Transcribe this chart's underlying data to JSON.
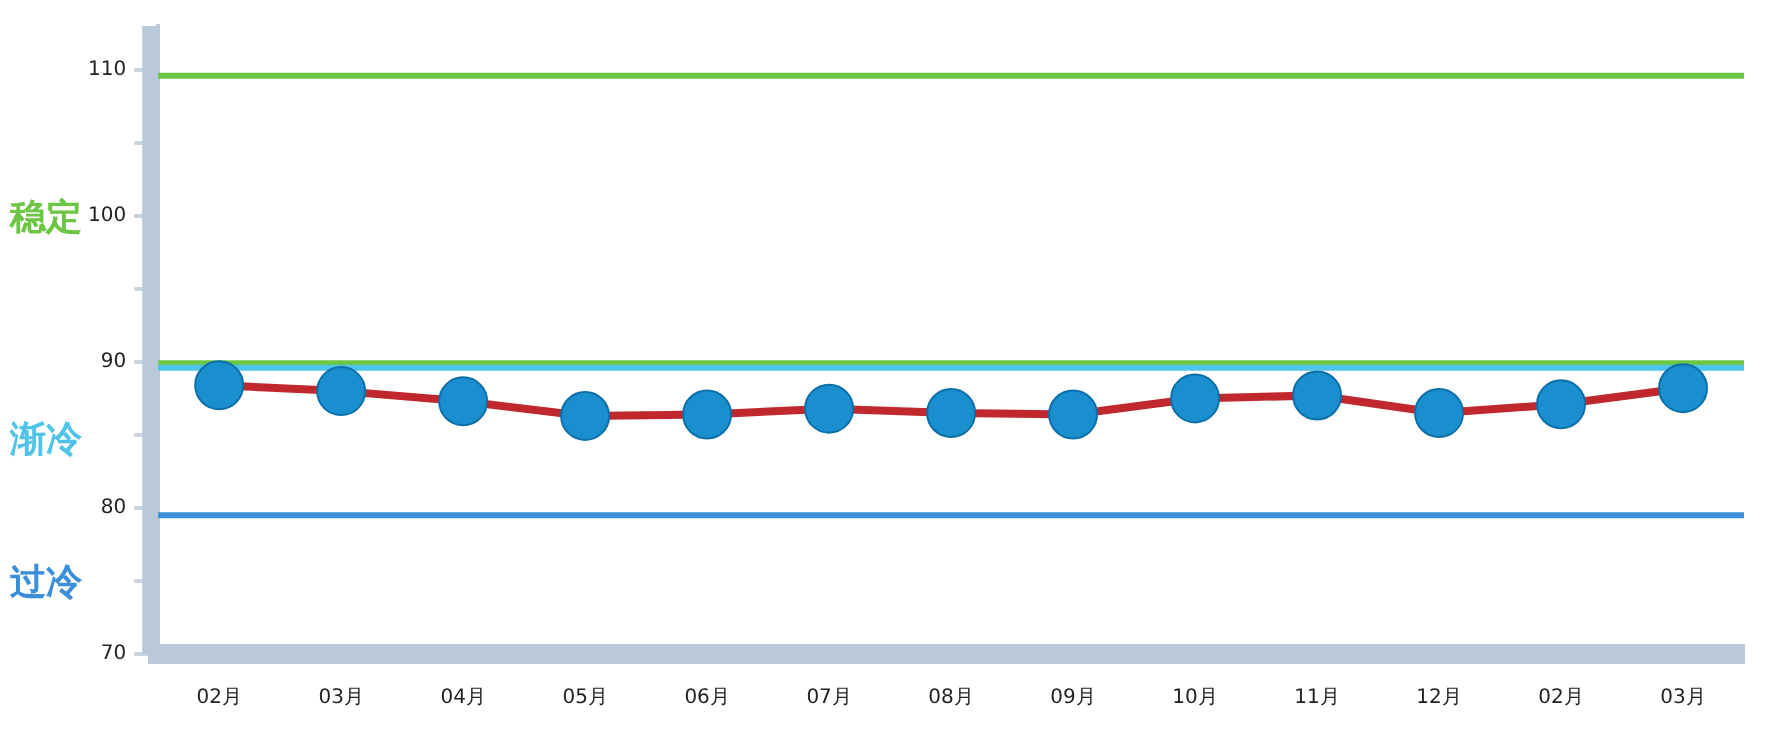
{
  "chart_data": {
    "type": "line",
    "categories": [
      "02月",
      "03月",
      "04月",
      "05月",
      "06月",
      "07月",
      "08月",
      "09月",
      "10月",
      "11月",
      "12月",
      "02月",
      "03月"
    ],
    "series": [
      {
        "color": "#c0282d",
        "values": [
          88.4,
          88.0,
          87.3,
          86.3,
          86.4,
          86.8,
          86.5,
          86.4,
          87.5,
          87.7,
          86.5,
          87.1,
          88.2
        ]
      }
    ],
    "ylim": [
      70,
      113
    ],
    "yticks": [
      70,
      {
        "value": 75,
        "label": null
      },
      80,
      {
        "value": 85,
        "label": null
      },
      90,
      {
        "value": 95,
        "label": null
      },
      100,
      {
        "value": 105,
        "label": null
      },
      110
    ],
    "ref_lines": [
      {
        "axis": "y",
        "value": 109.6,
        "color": "#6cc644"
      },
      {
        "axis": "y",
        "value": 89.9,
        "color": "#6cc644"
      },
      {
        "axis": "y",
        "value": 89.6,
        "color": "#4fc3e8"
      },
      {
        "axis": "y",
        "value": 79.5,
        "color": "#3a8fd8"
      }
    ],
    "annotations": [
      "稳定",
      "渐冷",
      "过冷"
    ],
    "marker": "circle",
    "grid": false,
    "legend": false
  }
}
